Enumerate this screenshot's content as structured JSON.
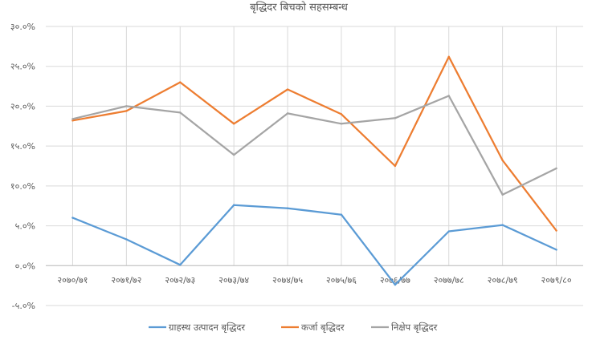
{
  "chart_data": {
    "type": "line",
    "title": "बृद्धिदर बिचको सहसम्बन्ध",
    "xlabel": "",
    "ylabel": "",
    "categories": [
      "२०७०/७१",
      "२०७१/७२",
      "२०७२/७३",
      "२०७३/७४",
      "२०७४/७५",
      "२०७५/७६",
      "२०७६/७७",
      "२०७७/७८",
      "२०७८/७९",
      "२०७९/८०"
    ],
    "yticks": [
      "३०.०%",
      "२५.०%",
      "२०.०%",
      "१५.०%",
      "१०.०%",
      "५.०%",
      "०.०%",
      "-५.०%"
    ],
    "ylim": [
      -5,
      30
    ],
    "grid": true,
    "legend_position": "bottom",
    "series": [
      {
        "name": "ग्राहस्थ उत्पादन बृद्धिदर",
        "color": "#5b9bd5",
        "values": [
          6.0,
          3.3,
          0.1,
          7.6,
          7.2,
          6.4,
          -2.4,
          4.3,
          5.1,
          2.0
        ]
      },
      {
        "name": "कर्जा बृद्धिदर",
        "color": "#ed7d31",
        "values": [
          18.2,
          19.4,
          23.0,
          17.8,
          22.1,
          19.0,
          12.5,
          26.2,
          13.2,
          4.4
        ]
      },
      {
        "name": "निक्षेप बृद्धिदर",
        "color": "#a5a5a5",
        "values": [
          18.4,
          20.0,
          19.2,
          13.9,
          19.1,
          17.8,
          18.5,
          21.3,
          8.9,
          12.2
        ]
      }
    ]
  }
}
